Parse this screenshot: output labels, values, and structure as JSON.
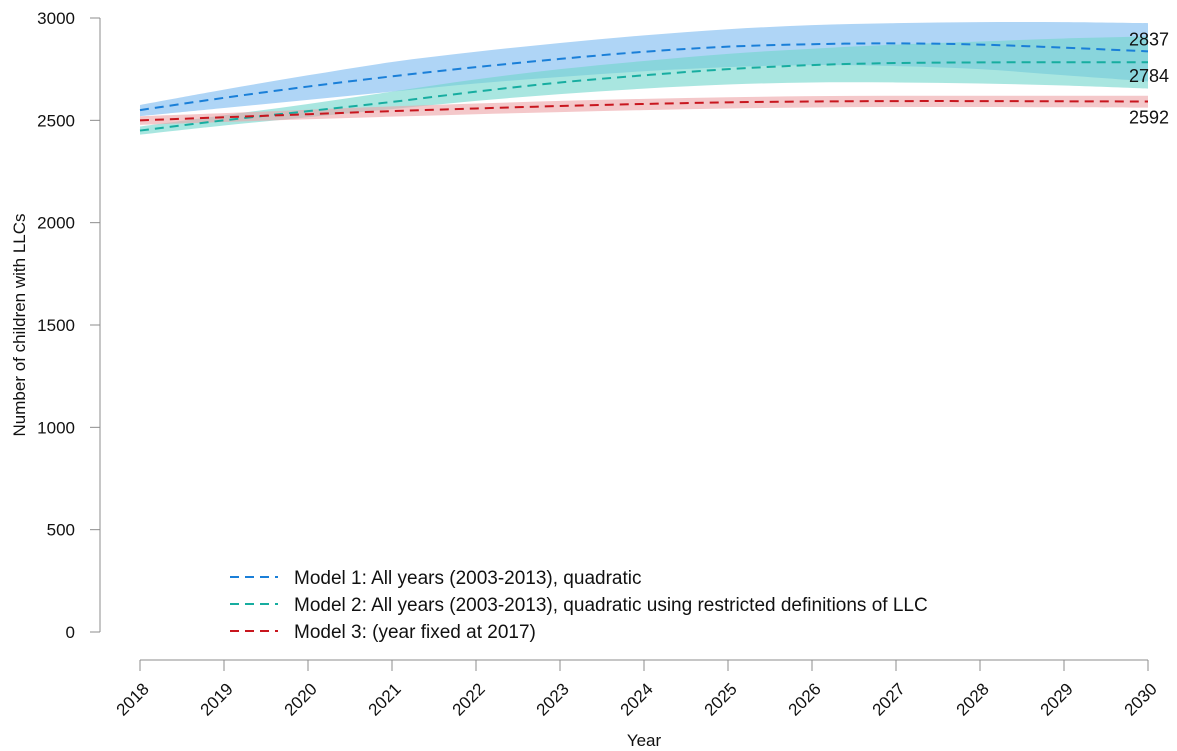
{
  "chart_data": {
    "type": "line",
    "xlabel": "Year",
    "ylabel": "Number of children with LLCs",
    "ylim": [
      0,
      3000
    ],
    "yticks": [
      0,
      500,
      1000,
      1500,
      2000,
      2500,
      3000
    ],
    "xlim": [
      2018,
      2030
    ],
    "xticks": [
      "2018",
      "2019",
      "2020",
      "2021",
      "2022",
      "2023",
      "2024",
      "2025",
      "2026",
      "2027",
      "2028",
      "2029",
      "2030"
    ],
    "grid": false,
    "legend_position": "bottom-left",
    "x": [
      2018,
      2019,
      2020,
      2021,
      2022,
      2023,
      2024,
      2025,
      2026,
      2027,
      2028,
      2029,
      2030
    ],
    "series": [
      {
        "name": "Model 1: All years (2003-2013), quadratic",
        "color": "#1a7fd8",
        "band_color": "#7ab9f0",
        "values": [
          2550,
          2610,
          2665,
          2715,
          2760,
          2800,
          2835,
          2860,
          2872,
          2876,
          2870,
          2855,
          2837
        ],
        "lower": [
          2520,
          2560,
          2600,
          2640,
          2680,
          2712,
          2740,
          2760,
          2770,
          2765,
          2750,
          2720,
          2690
        ],
        "upper": [
          2575,
          2650,
          2720,
          2785,
          2835,
          2878,
          2915,
          2945,
          2965,
          2975,
          2980,
          2980,
          2975
        ],
        "end_label": "2837"
      },
      {
        "name": "Model 2: All years (2003-2013), quadratic using restricted definitions of LLC",
        "color": "#17ada0",
        "band_color": "#6fd6cc",
        "values": [
          2450,
          2500,
          2545,
          2590,
          2640,
          2685,
          2720,
          2750,
          2770,
          2780,
          2783,
          2784,
          2784
        ],
        "lower": [
          2430,
          2475,
          2515,
          2555,
          2595,
          2628,
          2655,
          2675,
          2685,
          2685,
          2680,
          2670,
          2655
        ],
        "upper": [
          2470,
          2525,
          2580,
          2640,
          2700,
          2750,
          2790,
          2825,
          2850,
          2870,
          2885,
          2900,
          2910
        ],
        "end_label": "2784"
      },
      {
        "name": "Model 3: (year fixed at 2017)",
        "color": "#c8161e",
        "band_color": "#eda3a6",
        "values": [
          2500,
          2515,
          2530,
          2545,
          2558,
          2570,
          2580,
          2588,
          2592,
          2594,
          2594,
          2593,
          2592
        ],
        "lower": [
          2478,
          2492,
          2505,
          2518,
          2530,
          2540,
          2550,
          2558,
          2563,
          2565,
          2565,
          2564,
          2562
        ],
        "upper": [
          2520,
          2535,
          2552,
          2568,
          2582,
          2595,
          2605,
          2613,
          2618,
          2620,
          2620,
          2620,
          2620
        ],
        "end_label": "2592"
      }
    ]
  }
}
